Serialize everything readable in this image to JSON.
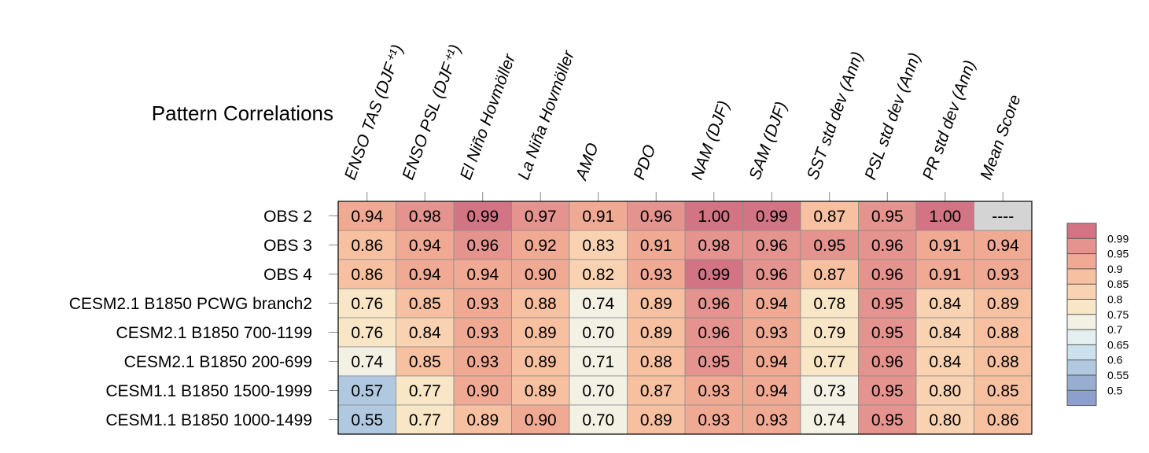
{
  "chart_data": {
    "type": "heatmap",
    "title": "Pattern Correlations",
    "columns": [
      "ENSO TAS (DJF⁺¹)",
      "ENSO PSL (DJF⁺¹)",
      "El Niño Hovmöller",
      "La Niña Hovmöller",
      "AMO",
      "PDO",
      "NAM (DJF)",
      "SAM (DJF)",
      "SST std dev (Ann)",
      "PSL std dev (Ann)",
      "PR std dev (Ann)",
      "Mean Score"
    ],
    "rows": [
      "OBS 2",
      "OBS 3",
      "OBS 4",
      "CESM2.1 B1850 PCWG branch2",
      "CESM2.1 B1850 700-1199",
      "CESM2.1 B1850 200-699",
      "CESM1.1 B1850 1500-1999",
      "CESM1.1 B1850 1000-1499"
    ],
    "values": [
      [
        "0.94",
        "0.98",
        "0.99",
        "0.97",
        "0.91",
        "0.96",
        "1.00",
        "0.99",
        "0.87",
        "0.95",
        "1.00",
        "----"
      ],
      [
        "0.86",
        "0.94",
        "0.96",
        "0.92",
        "0.83",
        "0.91",
        "0.98",
        "0.96",
        "0.95",
        "0.96",
        "0.91",
        "0.94"
      ],
      [
        "0.86",
        "0.94",
        "0.94",
        "0.90",
        "0.82",
        "0.93",
        "0.99",
        "0.96",
        "0.87",
        "0.96",
        "0.91",
        "0.93"
      ],
      [
        "0.76",
        "0.85",
        "0.93",
        "0.88",
        "0.74",
        "0.89",
        "0.96",
        "0.94",
        "0.78",
        "0.95",
        "0.84",
        "0.89"
      ],
      [
        "0.76",
        "0.84",
        "0.93",
        "0.89",
        "0.70",
        "0.89",
        "0.96",
        "0.93",
        "0.79",
        "0.95",
        "0.84",
        "0.88"
      ],
      [
        "0.74",
        "0.85",
        "0.93",
        "0.89",
        "0.71",
        "0.88",
        "0.95",
        "0.94",
        "0.77",
        "0.96",
        "0.84",
        "0.88"
      ],
      [
        "0.57",
        "0.77",
        "0.90",
        "0.89",
        "0.70",
        "0.87",
        "0.93",
        "0.94",
        "0.73",
        "0.95",
        "0.80",
        "0.85"
      ],
      [
        "0.55",
        "0.77",
        "0.89",
        "0.90",
        "0.70",
        "0.89",
        "0.93",
        "0.93",
        "0.74",
        "0.95",
        "0.80",
        "0.86"
      ]
    ],
    "colorbar": {
      "labels": [
        "0.99",
        "0.95",
        "0.9",
        "0.85",
        "0.8",
        "0.75",
        "0.7",
        "0.65",
        "0.6",
        "0.55",
        "0.5"
      ],
      "colors": [
        "#d27484",
        "#e4938e",
        "#f0a993",
        "#f7c0a0",
        "#f9d3b1",
        "#f8e6c6",
        "#f2f1e4",
        "#e3eff1",
        "#cbe1ed",
        "#b1c9e0",
        "#98aed0",
        "#8f9fcd"
      ]
    },
    "missing_color": "#d4d4d4"
  }
}
